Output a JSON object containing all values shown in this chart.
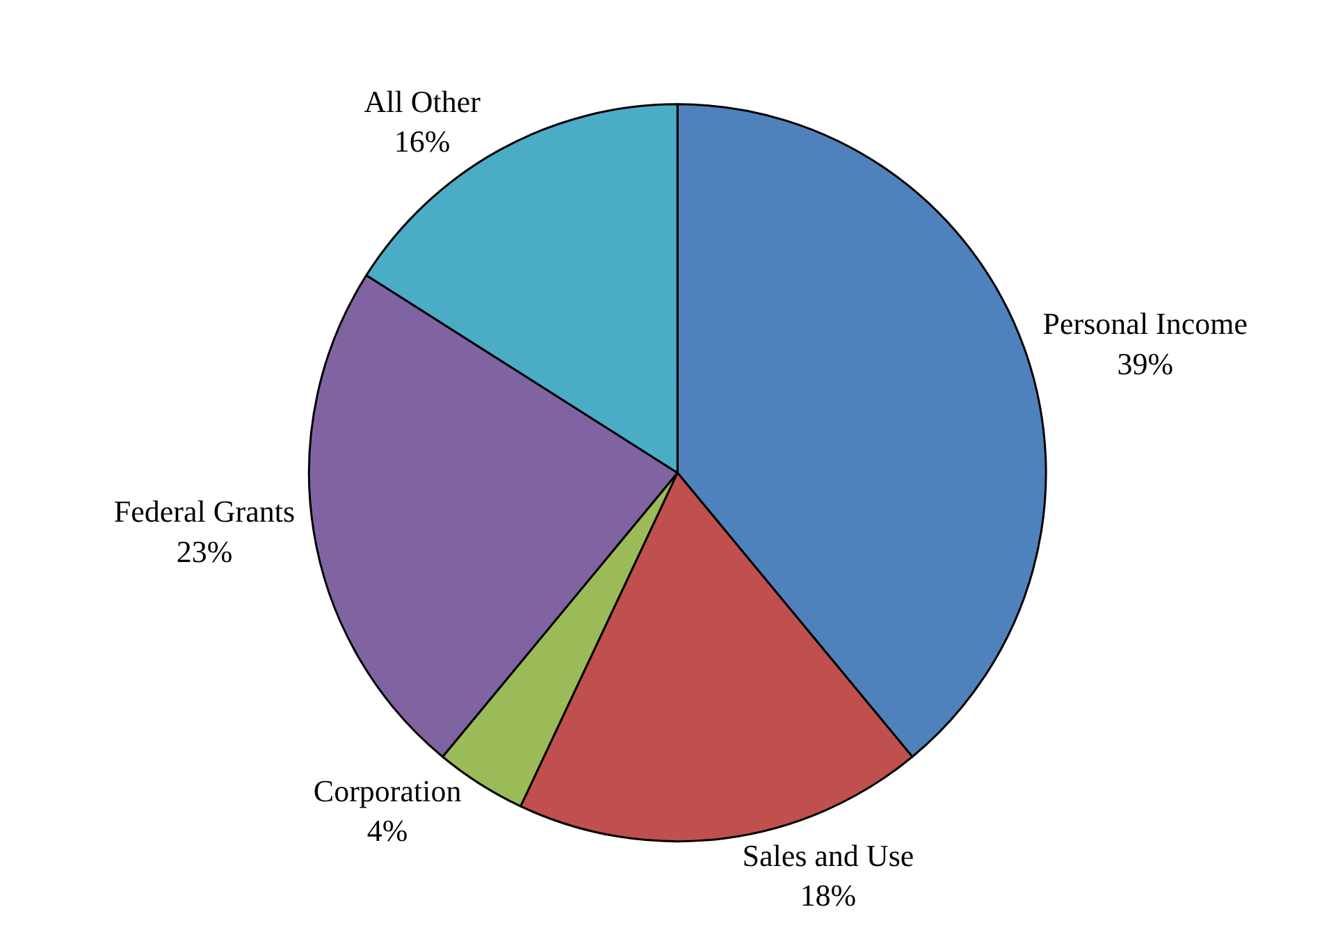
{
  "chart_data": {
    "type": "pie",
    "categories": [
      "Personal Income",
      "Sales and Use",
      "Corporation",
      "Federal Grants",
      "All Other"
    ],
    "values": [
      39,
      18,
      4,
      23,
      16
    ],
    "value_labels": [
      "39%",
      "18%",
      "4%",
      "23%",
      "16%"
    ],
    "colors": [
      "#4f81bd",
      "#c0504d",
      "#9bbb59",
      "#8064a2",
      "#4bacc6"
    ],
    "legend": false
  }
}
